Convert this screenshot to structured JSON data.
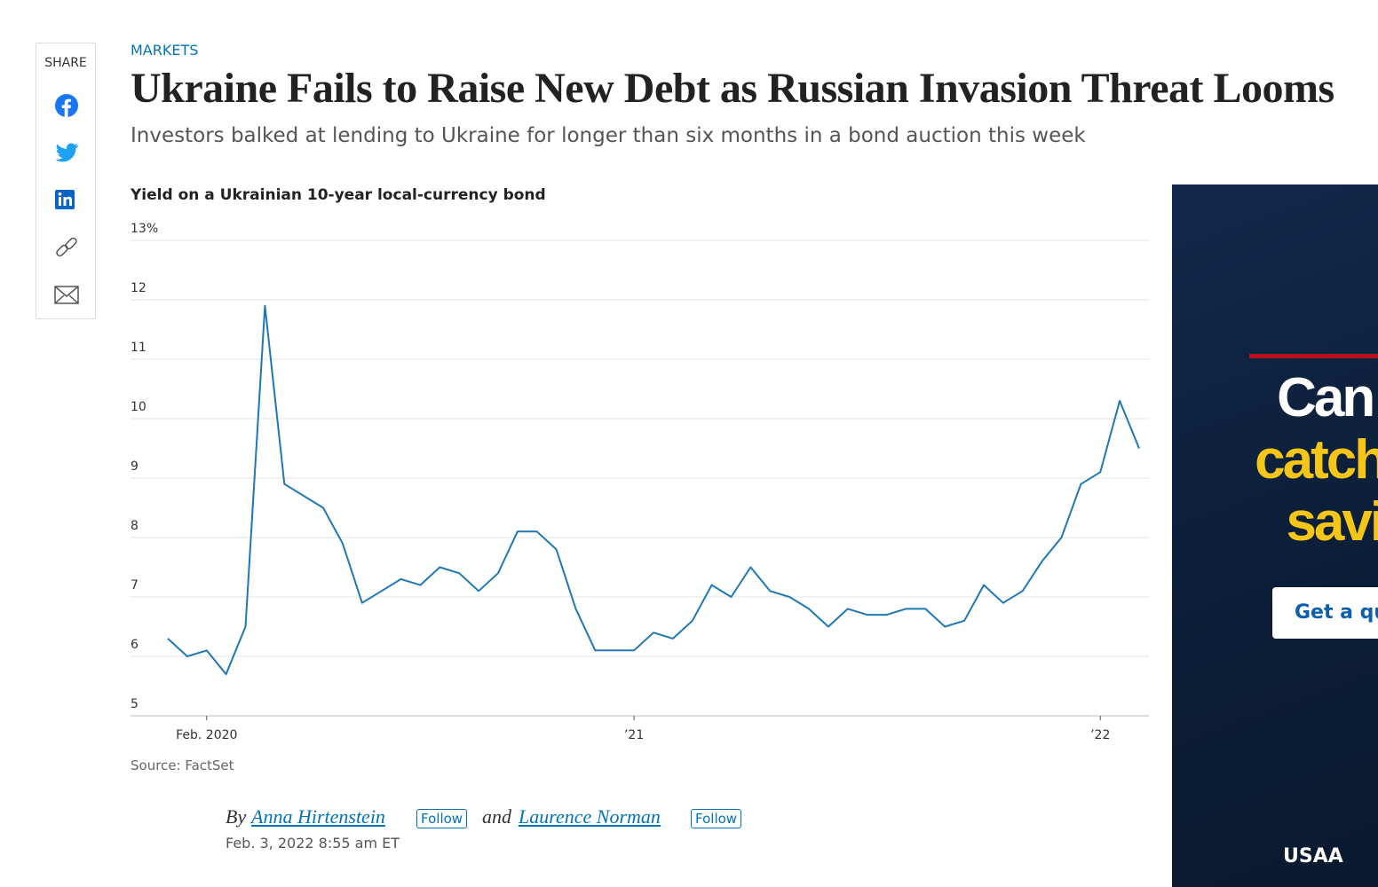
{
  "share": {
    "label": "SHARE"
  },
  "article": {
    "section": "MARKETS",
    "headline": "Ukraine Fails to Raise New Debt as Russian Invasion Threat Looms",
    "dek": "Investors balked at lending to Ukraine for longer than six months in a bond auction this week",
    "byline": {
      "by": "By",
      "author1": "Anna Hirtenstein",
      "follow1": "Follow",
      "and": "and",
      "author2": "Laurence Norman",
      "follow2": "Follow",
      "date": "Feb. 3, 2022 8:55 am ET"
    }
  },
  "chart_data": {
    "type": "line",
    "title": "Yield on a Ukrainian 10-year local-currency bond",
    "source": "Source: FactSet",
    "categories": [
      null,
      null,
      "Feb. 2020",
      null,
      null,
      null,
      null,
      null,
      null,
      null,
      null,
      null,
      null,
      null,
      null,
      null,
      null,
      null,
      null,
      null,
      null,
      null,
      null,
      null,
      "’21",
      null,
      null,
      null,
      null,
      null,
      null,
      null,
      null,
      null,
      null,
      null,
      null,
      null,
      null,
      null,
      null,
      null,
      null,
      null,
      null,
      null,
      null,
      null,
      "’22",
      null,
      null
    ],
    "values": [
      6.3,
      6.0,
      6.1,
      5.7,
      6.5,
      11.9,
      8.9,
      8.7,
      8.5,
      7.9,
      6.9,
      7.1,
      7.3,
      7.2,
      7.5,
      7.4,
      7.1,
      7.4,
      8.1,
      8.1,
      7.8,
      6.8,
      6.1,
      6.1,
      6.1,
      6.4,
      6.3,
      6.6,
      7.2,
      7.0,
      7.5,
      7.1,
      7.0,
      6.8,
      6.5,
      6.8,
      6.7,
      6.7,
      6.8,
      6.8,
      6.5,
      6.6,
      7.2,
      6.9,
      7.1,
      7.6,
      8.0,
      8.9,
      9.1,
      10.3,
      9.5
    ],
    "color": "#1f78b4",
    "ylim": [
      5,
      13
    ],
    "yticks": [
      5,
      6,
      7,
      8,
      9,
      10,
      11,
      12,
      {
        "value": 13,
        "label": "13%"
      }
    ],
    "grid": true
  },
  "ad": {
    "line1": "Can y",
    "line2": "catch t",
    "line3": "savin",
    "button": "Get a qu",
    "brand": "USAA"
  }
}
